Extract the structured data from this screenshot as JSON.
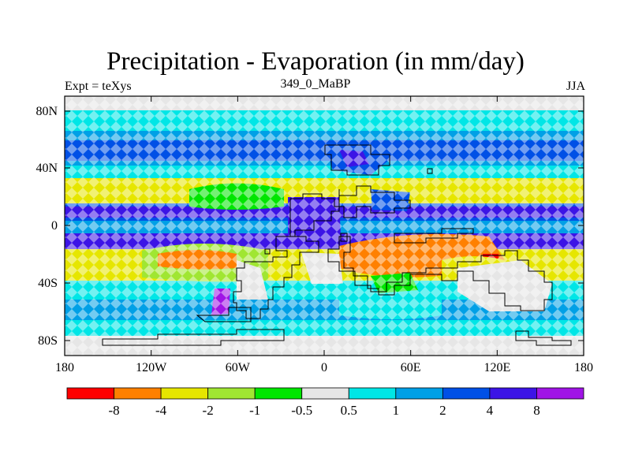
{
  "header": {
    "title": "Precipitation - Evaporation (in mm/day)",
    "left_label": "Expt = teXys",
    "center_label": "349_0_MaBP",
    "right_label": "JJA"
  },
  "map": {
    "lat_ticks": [
      "80N",
      "40N",
      "0",
      "40S",
      "80S"
    ],
    "lon_ticks": [
      "180",
      "120W",
      "60W",
      "0",
      "60E",
      "120E",
      "180"
    ]
  },
  "colorbar": {
    "labels": [
      "-8",
      "-4",
      "-2",
      "-1",
      "-0.5",
      "0.5",
      "1",
      "2",
      "4",
      "8"
    ],
    "colors": [
      "#ff0000",
      "#ff8000",
      "#e6e600",
      "#a0e632",
      "#00e600",
      "#e6e6e6",
      "#00e6e6",
      "#00a0e6",
      "#0050e6",
      "#3c14e6",
      "#a014e6"
    ]
  },
  "colors": {
    "ocean_dry": "#e6e6e6",
    "coast_line": "#000000"
  }
}
